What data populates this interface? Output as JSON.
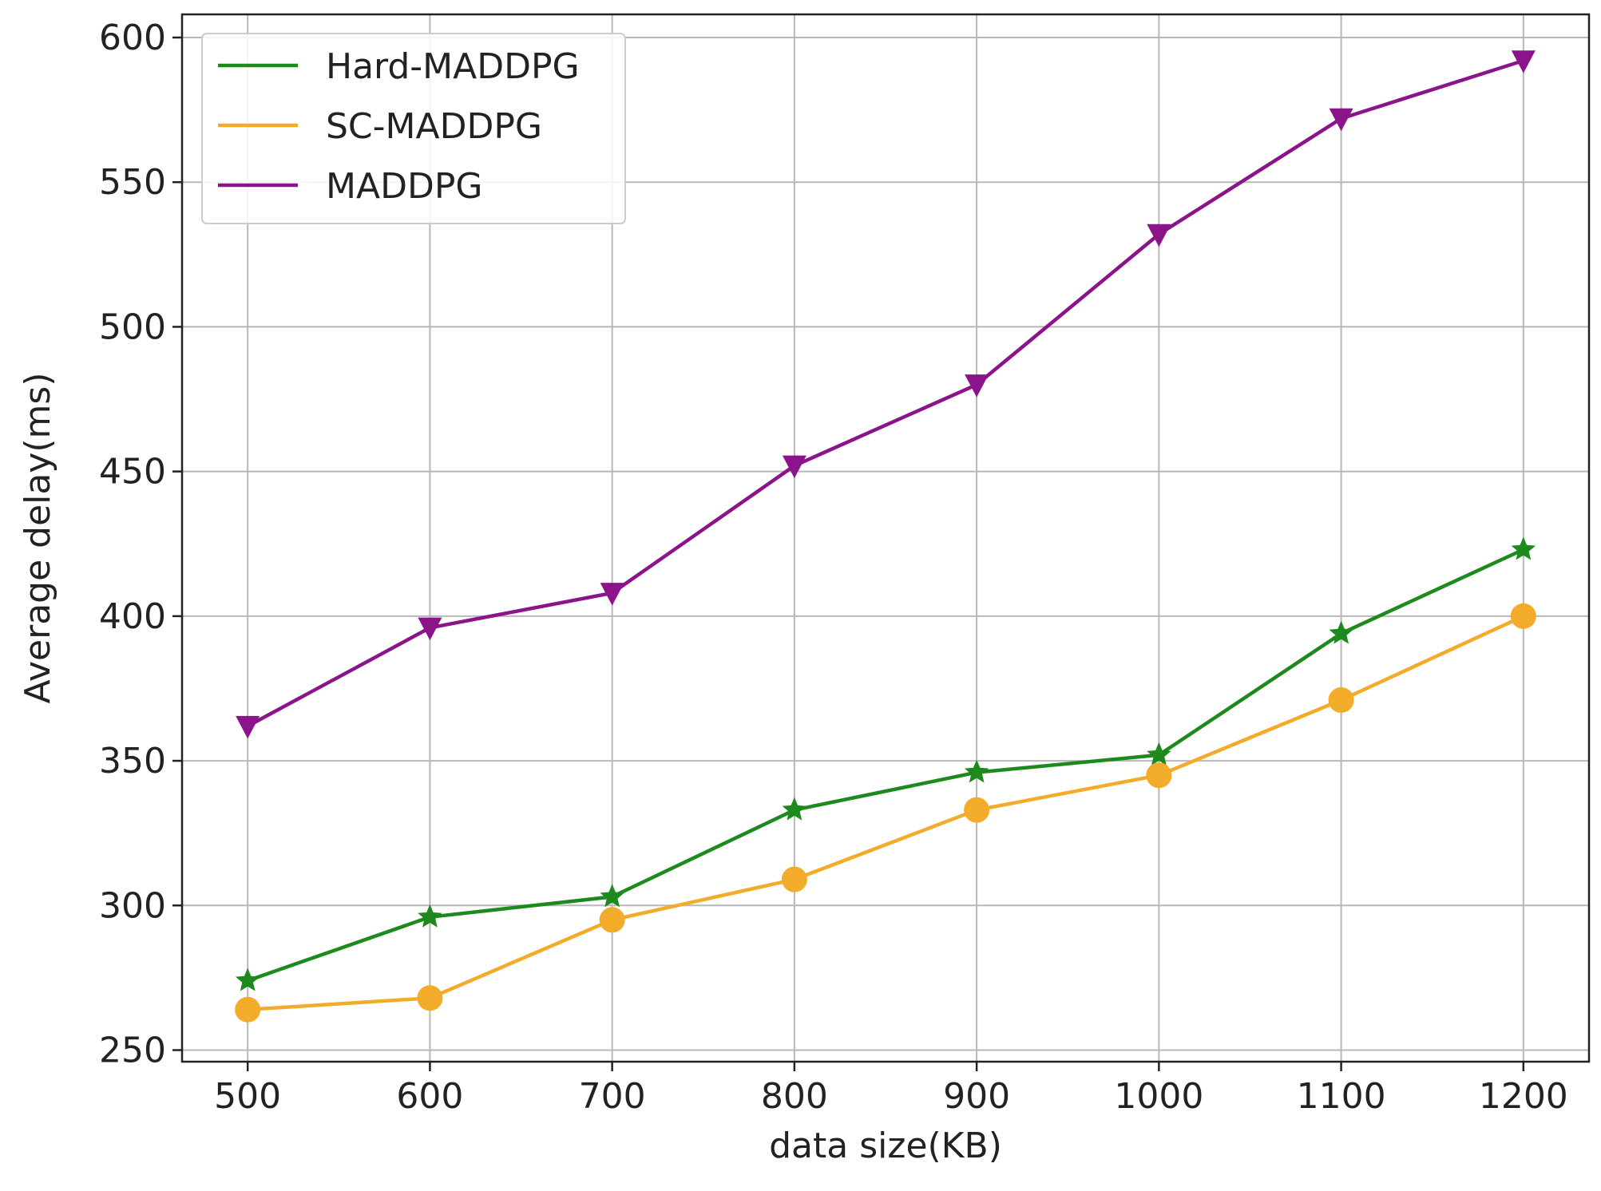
{
  "chart_data": {
    "type": "line",
    "title": "",
    "xlabel": "data size(KB)",
    "ylabel": "Average delay(ms)",
    "x": [
      500,
      600,
      700,
      800,
      900,
      1000,
      1100,
      1200
    ],
    "xlim": [
      464,
      1236
    ],
    "ylim": [
      246,
      608
    ],
    "xticks": [
      500,
      600,
      700,
      800,
      900,
      1000,
      1100,
      1200
    ],
    "yticks": [
      250,
      300,
      350,
      400,
      450,
      500,
      550,
      600
    ],
    "grid": true,
    "legend_position": "top-left",
    "series": [
      {
        "name": "Hard-MADDPG",
        "color": "#1e8a1e",
        "marker": "star",
        "values": [
          274,
          296,
          303,
          333,
          346,
          352,
          394,
          423
        ]
      },
      {
        "name": "SC-MADDPG",
        "color": "#f2ac2a",
        "marker": "circle",
        "values": [
          264,
          268,
          295,
          309,
          333,
          345,
          371,
          400
        ]
      },
      {
        "name": "MADDPG",
        "color": "#8b148b",
        "marker": "triangle-down",
        "values": [
          362,
          396,
          408,
          452,
          480,
          532,
          572,
          592
        ]
      }
    ]
  }
}
